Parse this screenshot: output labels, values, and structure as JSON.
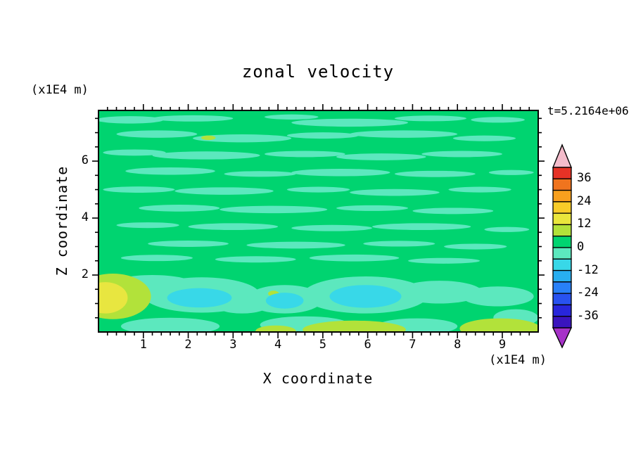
{
  "title": "zonal velocity",
  "time_label": "t=5.2164e+06",
  "y_unit_label": "(x1E4 m)",
  "x_unit_label": "(x1E4 m)",
  "x_axis_label": "X coordinate",
  "y_axis_label": "Z coordinate",
  "chart_data": {
    "type": "contour",
    "title": "zonal velocity",
    "xlabel": "X coordinate",
    "ylabel": "Z coordinate",
    "x_unit": "(x1E4 m)",
    "z_unit": "(x1E4 m)",
    "time_annotation": "t=5.2164e+06",
    "x_range": [
      0,
      9.8
    ],
    "z_range": [
      0,
      7.78
    ],
    "x_ticks": [
      1,
      2,
      3,
      4,
      5,
      6,
      7,
      8,
      9
    ],
    "z_ticks": [
      2,
      4,
      6
    ],
    "x_minor_step": 0.2,
    "z_minor_step": 0.5,
    "grid": false,
    "background": "green0",
    "palette": {
      "green0": "#00D470",
      "aqua": "#5CE8BE",
      "cyan": "#38D8E8",
      "ygreen": "#B2E23A",
      "yellow": "#E8E640"
    },
    "colorbar": {
      "labels": [
        36,
        24,
        12,
        0,
        -12,
        -24,
        -36
      ],
      "level_min": -42,
      "level_max": 42,
      "level_step": 6,
      "segment_colors_top_to_bottom": [
        "#E63226",
        "#F0741E",
        "#F8A01E",
        "#F8CC28",
        "#EAE63C",
        "#B2E23A",
        "#00D470",
        "#5CE8BE",
        "#38D8E8",
        "#28AEF0",
        "#2880F8",
        "#2852F0",
        "#2826DC",
        "#3A14BE"
      ],
      "cap_top_color": "#F4BCCB",
      "cap_bottom_color": "#A632C8"
    },
    "features": [
      {
        "x": 0.7,
        "z": 7.45,
        "rx": 0.75,
        "rz": 0.13,
        "c": "aqua"
      },
      {
        "x": 2.1,
        "z": 7.5,
        "rx": 0.9,
        "rz": 0.11,
        "c": "aqua"
      },
      {
        "x": 4.3,
        "z": 7.55,
        "rx": 0.6,
        "rz": 0.09,
        "c": "aqua"
      },
      {
        "x": 5.6,
        "z": 7.35,
        "rx": 1.3,
        "rz": 0.14,
        "c": "aqua"
      },
      {
        "x": 7.4,
        "z": 7.5,
        "rx": 0.8,
        "rz": 0.1,
        "c": "aqua"
      },
      {
        "x": 8.9,
        "z": 7.45,
        "rx": 0.6,
        "rz": 0.1,
        "c": "aqua"
      },
      {
        "x": 1.3,
        "z": 6.95,
        "rx": 0.9,
        "rz": 0.13,
        "c": "aqua"
      },
      {
        "x": 3.2,
        "z": 6.8,
        "rx": 1.1,
        "rz": 0.14,
        "c": "aqua"
      },
      {
        "x": 5.0,
        "z": 6.9,
        "rx": 0.8,
        "rz": 0.11,
        "c": "aqua"
      },
      {
        "x": 6.8,
        "z": 6.95,
        "rx": 1.2,
        "rz": 0.13,
        "c": "aqua"
      },
      {
        "x": 8.6,
        "z": 6.8,
        "rx": 0.7,
        "rz": 0.1,
        "c": "aqua"
      },
      {
        "x": 0.8,
        "z": 6.3,
        "rx": 0.7,
        "rz": 0.11,
        "c": "aqua"
      },
      {
        "x": 2.4,
        "z": 6.2,
        "rx": 1.2,
        "rz": 0.14,
        "c": "aqua"
      },
      {
        "x": 4.6,
        "z": 6.25,
        "rx": 0.9,
        "rz": 0.11,
        "c": "aqua"
      },
      {
        "x": 6.3,
        "z": 6.15,
        "rx": 1.0,
        "rz": 0.12,
        "c": "aqua"
      },
      {
        "x": 8.1,
        "z": 6.25,
        "rx": 0.9,
        "rz": 0.11,
        "c": "aqua"
      },
      {
        "x": 1.6,
        "z": 5.65,
        "rx": 1.0,
        "rz": 0.13,
        "c": "aqua"
      },
      {
        "x": 3.6,
        "z": 5.55,
        "rx": 0.8,
        "rz": 0.1,
        "c": "aqua"
      },
      {
        "x": 5.4,
        "z": 5.6,
        "rx": 1.1,
        "rz": 0.13,
        "c": "aqua"
      },
      {
        "x": 7.5,
        "z": 5.55,
        "rx": 0.9,
        "rz": 0.11,
        "c": "aqua"
      },
      {
        "x": 9.2,
        "z": 5.6,
        "rx": 0.5,
        "rz": 0.09,
        "c": "aqua"
      },
      {
        "x": 0.9,
        "z": 5.0,
        "rx": 0.8,
        "rz": 0.11,
        "c": "aqua"
      },
      {
        "x": 2.8,
        "z": 4.95,
        "rx": 1.1,
        "rz": 0.13,
        "c": "aqua"
      },
      {
        "x": 4.9,
        "z": 5.0,
        "rx": 0.7,
        "rz": 0.1,
        "c": "aqua"
      },
      {
        "x": 6.6,
        "z": 4.9,
        "rx": 1.0,
        "rz": 0.12,
        "c": "aqua"
      },
      {
        "x": 8.5,
        "z": 5.0,
        "rx": 0.7,
        "rz": 0.1,
        "c": "aqua"
      },
      {
        "x": 1.8,
        "z": 4.35,
        "rx": 0.9,
        "rz": 0.12,
        "c": "aqua"
      },
      {
        "x": 3.9,
        "z": 4.3,
        "rx": 1.2,
        "rz": 0.13,
        "c": "aqua"
      },
      {
        "x": 6.1,
        "z": 4.35,
        "rx": 0.8,
        "rz": 0.1,
        "c": "aqua"
      },
      {
        "x": 7.9,
        "z": 4.25,
        "rx": 0.9,
        "rz": 0.11,
        "c": "aqua"
      },
      {
        "x": 1.1,
        "z": 3.75,
        "rx": 0.7,
        "rz": 0.1,
        "c": "aqua"
      },
      {
        "x": 3.0,
        "z": 3.7,
        "rx": 1.0,
        "rz": 0.12,
        "c": "aqua"
      },
      {
        "x": 5.2,
        "z": 3.65,
        "rx": 0.9,
        "rz": 0.11,
        "c": "aqua"
      },
      {
        "x": 7.2,
        "z": 3.7,
        "rx": 1.1,
        "rz": 0.12,
        "c": "aqua"
      },
      {
        "x": 9.1,
        "z": 3.6,
        "rx": 0.5,
        "rz": 0.09,
        "c": "aqua"
      },
      {
        "x": 2.0,
        "z": 3.1,
        "rx": 0.9,
        "rz": 0.11,
        "c": "aqua"
      },
      {
        "x": 4.4,
        "z": 3.05,
        "rx": 1.1,
        "rz": 0.12,
        "c": "aqua"
      },
      {
        "x": 6.7,
        "z": 3.1,
        "rx": 0.8,
        "rz": 0.1,
        "c": "aqua"
      },
      {
        "x": 8.4,
        "z": 3.0,
        "rx": 0.7,
        "rz": 0.1,
        "c": "aqua"
      },
      {
        "x": 1.3,
        "z": 2.6,
        "rx": 0.8,
        "rz": 0.11,
        "c": "aqua"
      },
      {
        "x": 3.5,
        "z": 2.55,
        "rx": 0.9,
        "rz": 0.11,
        "c": "aqua"
      },
      {
        "x": 5.7,
        "z": 2.6,
        "rx": 1.0,
        "rz": 0.12,
        "c": "aqua"
      },
      {
        "x": 7.7,
        "z": 2.5,
        "rx": 0.8,
        "rz": 0.1,
        "c": "aqua"
      },
      {
        "x": 1.2,
        "z": 1.7,
        "rx": 0.9,
        "rz": 0.3,
        "c": "aqua"
      },
      {
        "x": 2.3,
        "z": 1.3,
        "rx": 1.3,
        "rz": 0.62,
        "c": "aqua"
      },
      {
        "x": 4.15,
        "z": 1.15,
        "rx": 0.85,
        "rz": 0.5,
        "c": "aqua"
      },
      {
        "x": 5.95,
        "z": 1.3,
        "rx": 1.4,
        "rz": 0.65,
        "c": "aqua"
      },
      {
        "x": 7.6,
        "z": 1.4,
        "rx": 0.95,
        "rz": 0.4,
        "c": "aqua"
      },
      {
        "x": 8.9,
        "z": 1.25,
        "rx": 0.8,
        "rz": 0.35,
        "c": "aqua"
      },
      {
        "x": 3.2,
        "z": 0.95,
        "rx": 0.6,
        "rz": 0.3,
        "c": "aqua"
      },
      {
        "x": 1.6,
        "z": 0.2,
        "rx": 1.1,
        "rz": 0.3,
        "c": "aqua"
      },
      {
        "x": 4.6,
        "z": 0.25,
        "rx": 1.0,
        "rz": 0.3,
        "c": "aqua"
      },
      {
        "x": 7.1,
        "z": 0.2,
        "rx": 0.9,
        "rz": 0.28,
        "c": "aqua"
      },
      {
        "x": 9.3,
        "z": 0.5,
        "rx": 0.5,
        "rz": 0.3,
        "c": "aqua"
      },
      {
        "x": 0.32,
        "z": 1.25,
        "rx": 0.85,
        "rz": 0.8,
        "c": "ygreen"
      },
      {
        "x": 5.7,
        "z": 0.08,
        "rx": 1.15,
        "rz": 0.32,
        "c": "ygreen"
      },
      {
        "x": 8.95,
        "z": 0.12,
        "rx": 0.9,
        "rz": 0.36,
        "c": "ygreen"
      },
      {
        "x": 3.95,
        "z": 0.03,
        "rx": 0.45,
        "rz": 0.2,
        "c": "ygreen"
      },
      {
        "x": 2.45,
        "z": 6.82,
        "rx": 0.16,
        "rz": 0.08,
        "c": "ygreen"
      },
      {
        "x": 3.9,
        "z": 1.35,
        "rx": 0.12,
        "rz": 0.1,
        "c": "ygreen"
      },
      {
        "x": 0.15,
        "z": 1.2,
        "rx": 0.5,
        "rz": 0.55,
        "c": "yellow"
      },
      {
        "x": 2.25,
        "z": 1.2,
        "rx": 0.72,
        "rz": 0.34,
        "c": "cyan"
      },
      {
        "x": 4.15,
        "z": 1.1,
        "rx": 0.42,
        "rz": 0.28,
        "c": "cyan"
      },
      {
        "x": 5.95,
        "z": 1.25,
        "rx": 0.8,
        "rz": 0.4,
        "c": "cyan"
      }
    ]
  }
}
